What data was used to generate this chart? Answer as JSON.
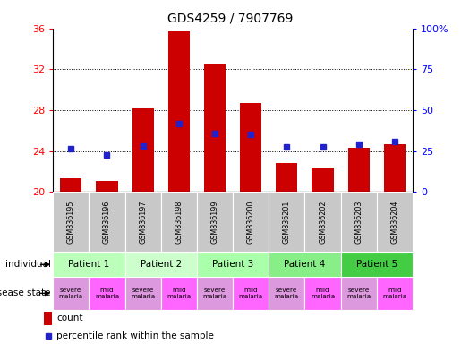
{
  "title": "GDS4259 / 7907769",
  "samples": [
    "GSM836195",
    "GSM836196",
    "GSM836197",
    "GSM836198",
    "GSM836199",
    "GSM836200",
    "GSM836201",
    "GSM836202",
    "GSM836203",
    "GSM836204"
  ],
  "bar_heights": [
    21.3,
    21.1,
    28.2,
    35.7,
    32.5,
    28.7,
    22.8,
    22.4,
    24.3,
    24.7
  ],
  "blue_y": [
    24.2,
    23.6,
    24.5,
    26.7,
    25.7,
    25.6,
    24.4,
    24.4,
    24.7,
    24.9
  ],
  "ymin": 20,
  "ymax": 36,
  "y2min": 0,
  "y2max": 100,
  "yticks": [
    20,
    24,
    28,
    32,
    36
  ],
  "y2ticks": [
    0,
    25,
    50,
    75,
    100
  ],
  "bar_color": "#cc0000",
  "blue_color": "#2222cc",
  "patients": [
    {
      "label": "Patient 1",
      "cols": [
        0,
        1
      ],
      "bg": "#bbffbb"
    },
    {
      "label": "Patient 2",
      "cols": [
        2,
        3
      ],
      "bg": "#ccffcc"
    },
    {
      "label": "Patient 3",
      "cols": [
        4,
        5
      ],
      "bg": "#aaffaa"
    },
    {
      "label": "Patient 4",
      "cols": [
        6,
        7
      ],
      "bg": "#88ee88"
    },
    {
      "label": "Patient 5",
      "cols": [
        8,
        9
      ],
      "bg": "#44cc44"
    }
  ],
  "disease_severe_bg": "#dd99dd",
  "disease_mild_bg": "#ff66ff",
  "disease_states": [
    {
      "label": "severe\nmalaria",
      "col": 0,
      "mild": false
    },
    {
      "label": "mild\nmalaria",
      "col": 1,
      "mild": true
    },
    {
      "label": "severe\nmalaria",
      "col": 2,
      "mild": false
    },
    {
      "label": "mild\nmalaria",
      "col": 3,
      "mild": true
    },
    {
      "label": "severe\nmalaria",
      "col": 4,
      "mild": false
    },
    {
      "label": "mild\nmalaria",
      "col": 5,
      "mild": true
    },
    {
      "label": "severe\nmalaria",
      "col": 6,
      "mild": false
    },
    {
      "label": "mild\nmalaria",
      "col": 7,
      "mild": true
    },
    {
      "label": "severe\nmalaria",
      "col": 8,
      "mild": false
    },
    {
      "label": "mild\nmalaria",
      "col": 9,
      "mild": true
    }
  ],
  "legend_count_color": "#cc0000",
  "legend_pct_color": "#2222cc",
  "grid_yticks": [
    24,
    28,
    32
  ],
  "sample_bg": "#c8c8c8"
}
